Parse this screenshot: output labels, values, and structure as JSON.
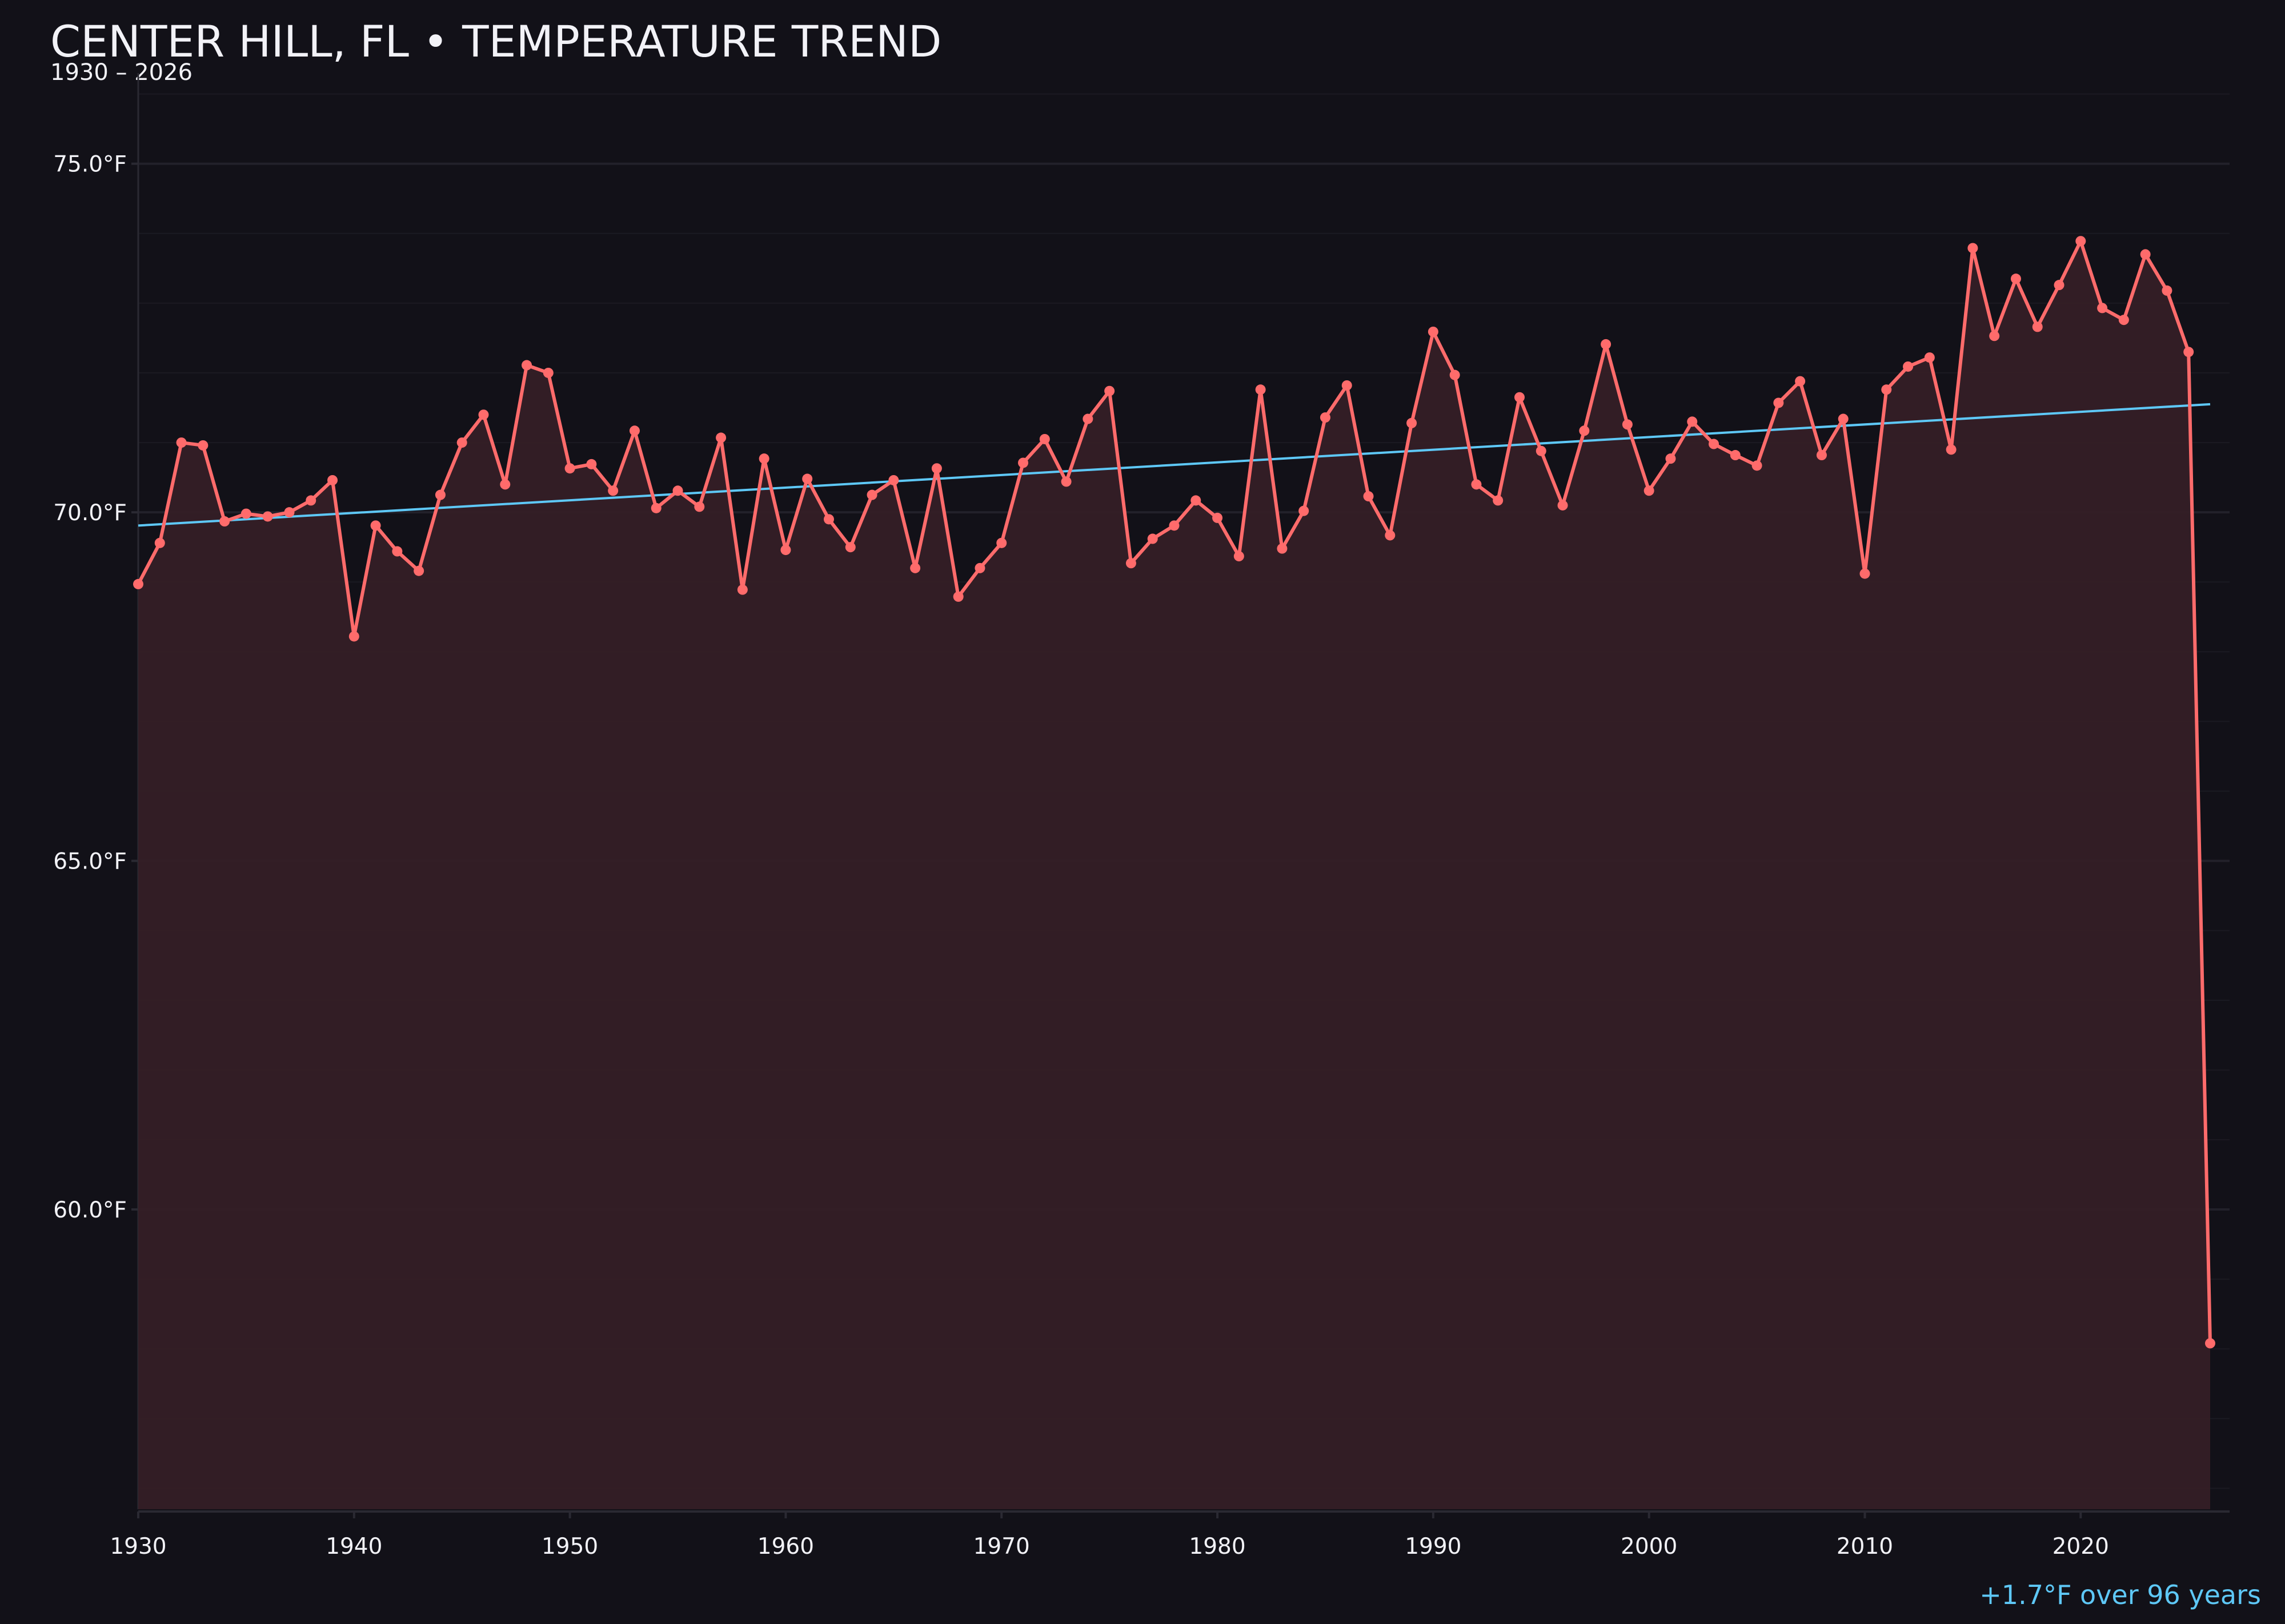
{
  "title": "CENTER HILL, FL • TEMPERATURE TREND",
  "subtitle": "1930 – 2026",
  "summary": "+1.7°F over 96 years",
  "colors": {
    "background": "#121118",
    "line": "#ff6b6b",
    "fill": "#351f26",
    "trend": "#5ec8f7",
    "grid": "#22212a",
    "text": "#f2f2f7"
  },
  "chart_data": {
    "type": "line",
    "title": "CENTER HILL, FL • TEMPERATURE TREND",
    "xlabel": "",
    "ylabel": "",
    "xlim": [
      1930,
      2027
    ],
    "ylim": [
      55.7,
      76.3
    ],
    "grid": true,
    "area_fill": true,
    "x_ticks": [
      "1930",
      "1940",
      "1950",
      "1960",
      "1970",
      "1980",
      "1990",
      "2000",
      "2010",
      "2020"
    ],
    "y_ticks": [
      "60.0°F",
      "65.0°F",
      "70.0°F",
      "75.0°F"
    ],
    "x": [
      1930,
      1931,
      1932,
      1933,
      1934,
      1935,
      1936,
      1937,
      1938,
      1939,
      1940,
      1941,
      1942,
      1943,
      1944,
      1945,
      1946,
      1947,
      1948,
      1949,
      1950,
      1951,
      1952,
      1953,
      1954,
      1955,
      1956,
      1957,
      1958,
      1959,
      1960,
      1961,
      1962,
      1963,
      1964,
      1965,
      1966,
      1967,
      1968,
      1969,
      1970,
      1971,
      1972,
      1973,
      1974,
      1975,
      1976,
      1977,
      1978,
      1979,
      1980,
      1981,
      1982,
      1983,
      1984,
      1985,
      1986,
      1987,
      1988,
      1989,
      1990,
      1991,
      1992,
      1993,
      1994,
      1995,
      1996,
      1997,
      1998,
      1999,
      2000,
      2001,
      2002,
      2003,
      2004,
      2005,
      2006,
      2007,
      2008,
      2009,
      2010,
      2011,
      2012,
      2013,
      2014,
      2015,
      2016,
      2017,
      2018,
      2019,
      2020,
      2021,
      2022,
      2023,
      2024,
      2025,
      2026
    ],
    "series": [
      {
        "values": [
          68.97,
          69.56,
          71.0,
          70.96,
          69.87,
          69.98,
          69.94,
          70.0,
          70.17,
          70.46,
          68.22,
          69.81,
          69.44,
          69.16,
          70.25,
          71.0,
          71.4,
          70.4,
          72.11,
          72.0,
          70.63,
          70.69,
          70.31,
          71.17,
          70.06,
          70.31,
          70.08,
          71.07,
          68.89,
          70.77,
          69.46,
          70.48,
          69.9,
          69.5,
          70.25,
          70.46,
          69.2,
          70.63,
          68.79,
          69.2,
          69.56,
          70.71,
          71.05,
          70.44,
          71.34,
          71.74,
          69.27,
          69.62,
          69.81,
          70.17,
          69.92,
          69.37,
          71.76,
          69.48,
          70.02,
          71.36,
          71.82,
          70.23,
          69.67,
          71.28,
          72.59,
          71.97,
          70.4,
          70.17,
          71.65,
          70.88,
          70.1,
          71.17,
          72.41,
          71.26,
          70.31,
          70.77,
          71.3,
          70.98,
          70.82,
          70.67,
          71.57,
          71.88,
          70.82,
          71.34,
          69.12,
          71.76,
          72.09,
          72.22,
          70.9,
          73.79,
          72.53,
          73.35,
          72.66,
          73.26,
          73.89,
          72.93,
          72.76,
          73.7,
          73.18,
          72.3,
          58.08
        ]
      }
    ],
    "trend": {
      "x": [
        1930,
        2026
      ],
      "y": [
        69.81,
        71.55
      ]
    }
  }
}
